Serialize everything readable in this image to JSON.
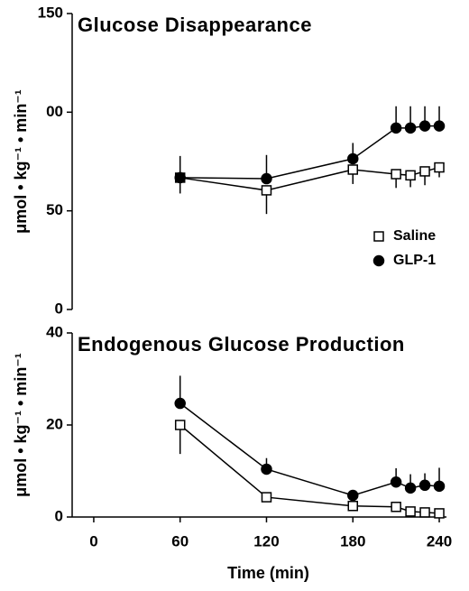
{
  "chart_data": [
    {
      "type": "line",
      "title": "Glucose Disappearance",
      "ylabel": "μmol • kg⁻¹ • min⁻¹",
      "x": [
        60,
        120,
        180,
        210,
        220,
        230,
        240
      ],
      "xlim": [
        -15,
        245
      ],
      "ylim": [
        0,
        150
      ],
      "yticks": [
        0,
        50,
        {
          "value": 100,
          "label": "00"
        },
        150
      ],
      "legend": "center right",
      "series": [
        {
          "name": "Saline",
          "color": "#000000",
          "marker": "square",
          "filled": false,
          "error_direction": "down",
          "values": [
            66.8,
            60.4,
            70.9,
            68.6,
            68,
            70,
            72
          ],
          "errors": [
            8,
            12,
            7.3,
            7,
            6,
            7,
            5
          ]
        },
        {
          "name": "GLP-1",
          "color": "#000000",
          "marker": "circle",
          "filled": true,
          "error_direction": "up",
          "values": [
            66.8,
            66.3,
            76.4,
            92,
            92,
            93,
            93
          ],
          "errors": [
            11,
            12,
            8,
            11,
            11,
            10,
            10
          ]
        }
      ]
    },
    {
      "type": "line",
      "title": "Endogenous Glucose Production",
      "ylabel": "μmol • kg⁻¹ • min⁻¹",
      "xlabel": "Time (min)",
      "x": [
        60,
        120,
        180,
        210,
        220,
        230,
        240
      ],
      "xlim": [
        -15,
        245
      ],
      "xticks": [
        0,
        60,
        120,
        180,
        240
      ],
      "ylim": [
        0,
        40
      ],
      "yticks": [
        0,
        20,
        40
      ],
      "series": [
        {
          "name": "Saline",
          "color": "#000000",
          "marker": "square",
          "filled": false,
          "error_direction": "down",
          "values": [
            20,
            4.3,
            2.4,
            2.2,
            1.2,
            1,
            0.8
          ],
          "errors": [
            6.3,
            1,
            0.6,
            0.6,
            0.4,
            0.4,
            0.4
          ]
        },
        {
          "name": "GLP-1",
          "color": "#000000",
          "marker": "circle",
          "filled": true,
          "error_direction": "up",
          "values": [
            24.7,
            10.4,
            4.7,
            7.6,
            6.3,
            6.9,
            6.7
          ],
          "errors": [
            6,
            2.4,
            1,
            3,
            3,
            2.6,
            4
          ]
        }
      ]
    }
  ]
}
